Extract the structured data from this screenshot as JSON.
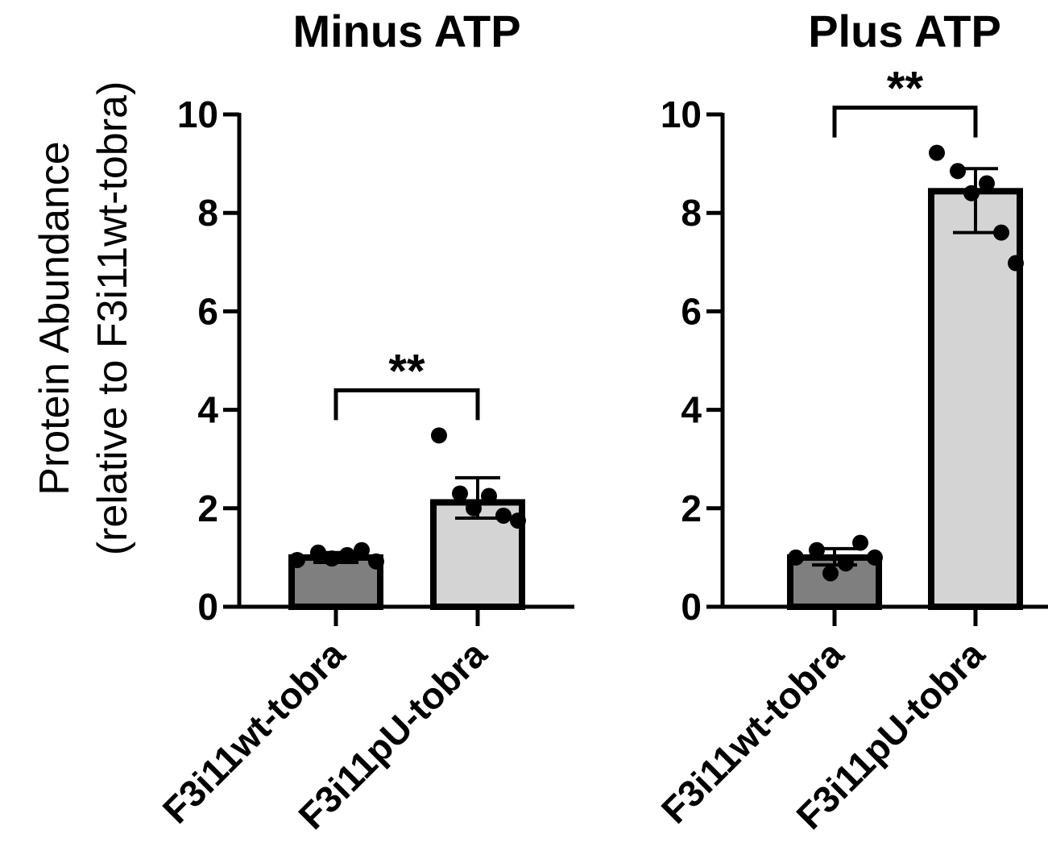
{
  "figure": {
    "ylabel_line1": "Protein Abundance",
    "ylabel_line2": "(relative to F3i11wt-tobra)"
  },
  "chart_data": [
    {
      "type": "bar",
      "title": "Minus ATP",
      "categories": [
        "F3i11wt-tobra",
        "F3i11pU-tobra"
      ],
      "ylim": [
        0,
        10
      ],
      "yticks": [
        "0",
        "2",
        "4",
        "6",
        "8",
        "10"
      ],
      "bar_colors": [
        "#7f7f7f",
        "#d4d4d4"
      ],
      "values": [
        1.0,
        2.12
      ],
      "error": [
        {
          "low": 0.9,
          "high": 1.1
        },
        {
          "low": 1.8,
          "high": 2.62
        }
      ],
      "points": [
        [
          0.95,
          1.1,
          0.98,
          1.05,
          1.15,
          0.92
        ],
        [
          3.48,
          2.3,
          2.0,
          2.25,
          1.85,
          1.75
        ]
      ],
      "significance": {
        "label": "**",
        "between": [
          0,
          1
        ]
      }
    },
    {
      "type": "bar",
      "title": "Plus ATP",
      "categories": [
        "F3i11wt-tobra",
        "F3i11pU-tobra"
      ],
      "ylim": [
        0,
        10
      ],
      "yticks": [
        "0",
        "2",
        "4",
        "6",
        "8",
        "10"
      ],
      "bar_colors": [
        "#7f7f7f",
        "#d4d4d4"
      ],
      "values": [
        1.0,
        8.44
      ],
      "error": [
        {
          "low": 0.85,
          "high": 1.18
        },
        {
          "low": 7.6,
          "high": 8.9
        }
      ],
      "points": [
        [
          1.0,
          1.15,
          0.68,
          0.88,
          1.3,
          1.0
        ],
        [
          9.22,
          8.85,
          8.4,
          8.6,
          7.6,
          6.98
        ]
      ],
      "significance": {
        "label": "**",
        "between": [
          0,
          1
        ]
      }
    }
  ]
}
